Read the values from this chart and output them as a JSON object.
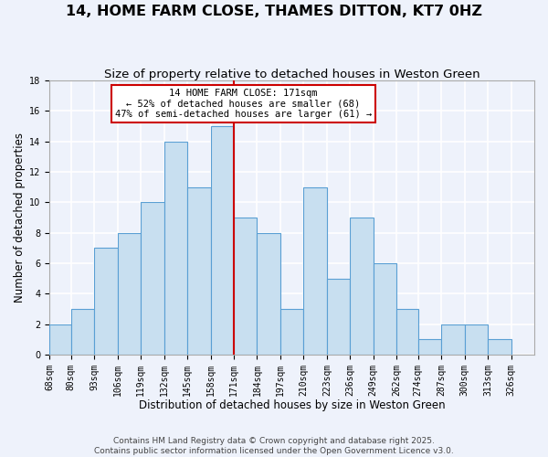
{
  "title": "14, HOME FARM CLOSE, THAMES DITTON, KT7 0HZ",
  "subtitle": "Size of property relative to detached houses in Weston Green",
  "xlabel": "Distribution of detached houses by size in Weston Green",
  "ylabel": "Number of detached properties",
  "bins": [
    "68sqm",
    "80sqm",
    "93sqm",
    "106sqm",
    "119sqm",
    "132sqm",
    "145sqm",
    "158sqm",
    "171sqm",
    "184sqm",
    "197sqm",
    "210sqm",
    "223sqm",
    "236sqm",
    "249sqm",
    "262sqm",
    "274sqm",
    "287sqm",
    "300sqm",
    "313sqm",
    "326sqm"
  ],
  "bin_edges": [
    68,
    80,
    93,
    106,
    119,
    132,
    145,
    158,
    171,
    184,
    197,
    210,
    223,
    236,
    249,
    262,
    274,
    287,
    300,
    313,
    326
  ],
  "counts": [
    2,
    3,
    7,
    8,
    10,
    14,
    11,
    15,
    9,
    8,
    3,
    11,
    5,
    9,
    6,
    3,
    1,
    2,
    2,
    1
  ],
  "bar_color": "#c8dff0",
  "bar_edge_color": "#5a9fd4",
  "vline_x": 171,
  "vline_color": "#cc0000",
  "annotation_title": "14 HOME FARM CLOSE: 171sqm",
  "annotation_line2": "← 52% of detached houses are smaller (68)",
  "annotation_line3": "47% of semi-detached houses are larger (61) →",
  "annotation_box_edge_color": "#cc0000",
  "ylim": [
    0,
    18
  ],
  "yticks": [
    0,
    2,
    4,
    6,
    8,
    10,
    12,
    14,
    16,
    18
  ],
  "footer1": "Contains HM Land Registry data © Crown copyright and database right 2025.",
  "footer2": "Contains public sector information licensed under the Open Government Licence v3.0.",
  "bg_color": "#eef2fb",
  "grid_color": "#ffffff",
  "title_fontsize": 11.5,
  "subtitle_fontsize": 9.5,
  "axis_label_fontsize": 8.5,
  "tick_fontsize": 7,
  "footer_fontsize": 6.5,
  "annotation_fontsize": 7.5
}
